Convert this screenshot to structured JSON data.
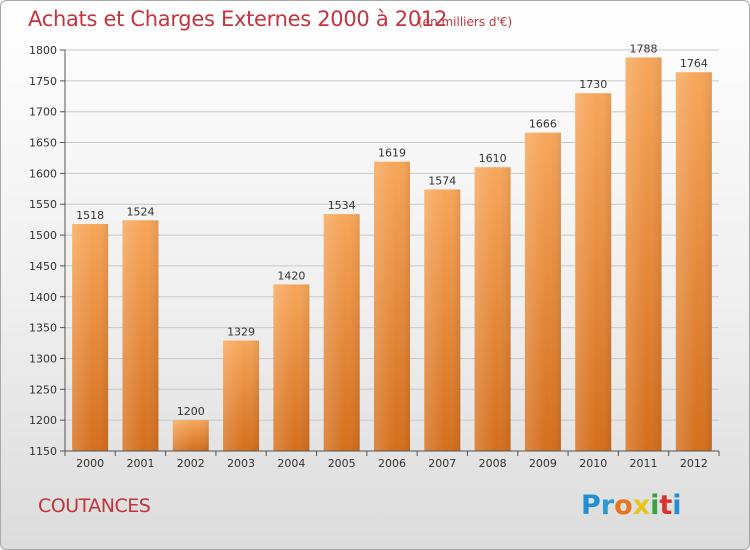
{
  "title": "Achats et Charges Externes 2000 à 2012",
  "subtitle": "(en milliers d'€)",
  "city": "COUTANCES",
  "logo": {
    "text": "Proxiti",
    "colors": [
      "#1f8fd1",
      "#2a9bd9",
      "#e8741c",
      "#e8c61c",
      "#3aa23a",
      "#d8332e",
      "#1f8fd1"
    ]
  },
  "colors": {
    "title": "#c2353d",
    "bar_light": "#f7a65a",
    "bar_dark": "#d46e1c",
    "grid": "#c8c8c8",
    "axis": "#333333"
  },
  "chart_data": {
    "type": "bar",
    "title": "Achats et Charges Externes 2000 à 2012",
    "xlabel": "",
    "ylabel": "",
    "categories": [
      "2000",
      "2001",
      "2002",
      "2003",
      "2004",
      "2005",
      "2006",
      "2007",
      "2008",
      "2009",
      "2010",
      "2011",
      "2012"
    ],
    "values": [
      1518,
      1524,
      1200,
      1329,
      1420,
      1534,
      1619,
      1574,
      1610,
      1666,
      1730,
      1788,
      1764
    ],
    "ylim": [
      1150,
      1800
    ],
    "yticks": [
      1150,
      1200,
      1250,
      1300,
      1350,
      1400,
      1450,
      1500,
      1550,
      1600,
      1650,
      1700,
      1750,
      1800
    ],
    "grid": true,
    "legend": "none"
  }
}
